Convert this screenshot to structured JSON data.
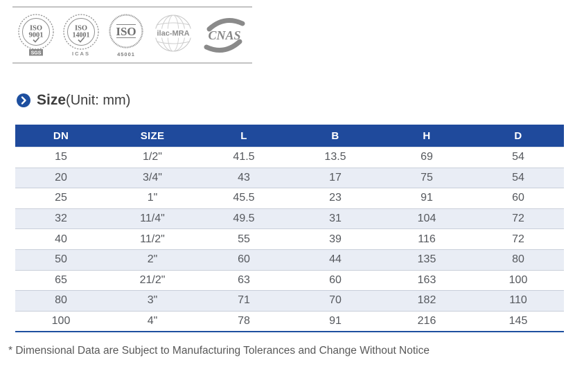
{
  "certifications": {
    "logos": [
      {
        "id": "iso-9001",
        "top_text": "ISO",
        "bottom_text": "9001",
        "caption": "SGS"
      },
      {
        "id": "iso-14001",
        "top_text": "ISO",
        "bottom_text": "14001",
        "caption": "ICAS"
      },
      {
        "id": "iso-45001",
        "top_text": "ISO",
        "caption": "45001"
      },
      {
        "id": "ilac-mra",
        "label": "ilac-MRA"
      },
      {
        "id": "cnas",
        "label": "CNAS"
      }
    ]
  },
  "heading": {
    "title": "Size",
    "unit": "(Unit: mm)"
  },
  "table": {
    "columns": [
      "DN",
      "SIZE",
      "L",
      "B",
      "H",
      "D"
    ],
    "rows": [
      [
        "15",
        "1/2\"",
        "41.5",
        "13.5",
        "69",
        "54"
      ],
      [
        "20",
        "3/4\"",
        "43",
        "17",
        "75",
        "54"
      ],
      [
        "25",
        "1\"",
        "45.5",
        "23",
        "91",
        "60"
      ],
      [
        "32",
        "11/4\"",
        "49.5",
        "31",
        "104",
        "72"
      ],
      [
        "40",
        "11/2\"",
        "55",
        "39",
        "116",
        "72"
      ],
      [
        "50",
        "2\"",
        "60",
        "44",
        "135",
        "80"
      ],
      [
        "65",
        "21/2\"",
        "63",
        "60",
        "163",
        "100"
      ],
      [
        "80",
        "3\"",
        "71",
        "70",
        "182",
        "110"
      ],
      [
        "100",
        "4\"",
        "78",
        "91",
        "216",
        "145"
      ]
    ]
  },
  "footnote": "* Dimensional Data are Subject to Manufacturing Tolerances and Change Without Notice",
  "colors": {
    "header_blue": "#1f4a9c",
    "stripe_blue": "#e9edf5",
    "accent_blue": "#1d4f9f",
    "logo_gray": "#8a8a8a"
  }
}
